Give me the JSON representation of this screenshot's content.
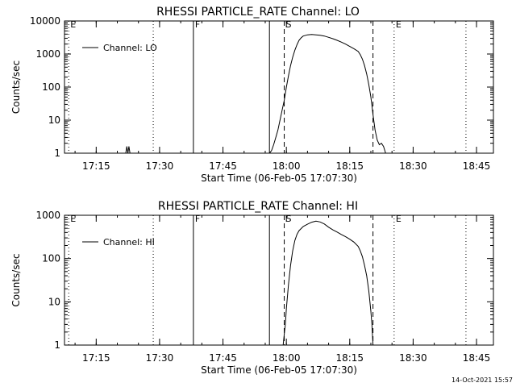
{
  "footer": {
    "timestamp": "14-Oct-2021 15:57"
  },
  "chart_data": [
    {
      "type": "line",
      "title": "RHESSI PARTICLE_RATE Channel: LO",
      "xlabel": "Start Time (06-Feb-05 17:07:30)",
      "ylabel": "Counts/sec",
      "y_scale": "log",
      "ylim": [
        1,
        10000
      ],
      "xlim": [
        "17:07:30",
        "18:49:00"
      ],
      "x_ticks": [
        "17:15",
        "17:30",
        "17:45",
        "18:00",
        "18:15",
        "18:30",
        "18:45"
      ],
      "y_ticks": [
        "1",
        "10",
        "100",
        "1000",
        "10000"
      ],
      "legend": {
        "position": "top-left",
        "entries": [
          "Channel: LO"
        ]
      },
      "markers": [
        {
          "label": "E",
          "time": "17:08:30",
          "style": "dotted"
        },
        {
          "label": "",
          "time": "17:28:30",
          "style": "dotted"
        },
        {
          "label": "F",
          "time": "17:38:00",
          "style": "solid"
        },
        {
          "label": "",
          "time": "17:56:00",
          "style": "solid"
        },
        {
          "label": "S",
          "time": "17:59:30",
          "style": "dashed"
        },
        {
          "label": "",
          "time": "18:20:30",
          "style": "dashed"
        },
        {
          "label": "E",
          "time": "18:25:30",
          "style": "dotted"
        },
        {
          "label": "",
          "time": "18:42:30",
          "style": "dotted"
        }
      ],
      "series": [
        {
          "name": "Channel: LO",
          "segments": [
            [
              [
                "17:22:00",
                1
              ],
              [
                "17:22:15",
                1.6
              ],
              [
                "17:22:30",
                1
              ],
              [
                "17:22:45",
                1.6
              ],
              [
                "17:23:00",
                1
              ]
            ],
            [
              [
                "17:56:00",
                1
              ],
              [
                "17:56:30",
                1.2
              ],
              [
                "17:57:00",
                1.8
              ],
              [
                "17:57:30",
                3
              ],
              [
                "17:58:00",
                5
              ],
              [
                "17:58:30",
                10
              ],
              [
                "17:59:00",
                20
              ],
              [
                "17:59:30",
                40
              ],
              [
                "18:00:00",
                100
              ],
              [
                "18:00:30",
                220
              ],
              [
                "18:01:00",
                450
              ],
              [
                "18:01:30",
                800
              ],
              [
                "18:02:00",
                1300
              ],
              [
                "18:02:30",
                1900
              ],
              [
                "18:03:00",
                2600
              ],
              [
                "18:03:30",
                3100
              ],
              [
                "18:04:00",
                3500
              ],
              [
                "18:05:00",
                3800
              ],
              [
                "18:06:00",
                3900
              ],
              [
                "18:07:00",
                3800
              ],
              [
                "18:08:00",
                3700
              ],
              [
                "18:09:00",
                3500
              ],
              [
                "18:10:00",
                3200
              ],
              [
                "18:11:00",
                2900
              ],
              [
                "18:12:00",
                2600
              ],
              [
                "18:13:00",
                2300
              ],
              [
                "18:14:00",
                2000
              ],
              [
                "18:15:00",
                1700
              ],
              [
                "18:16:00",
                1450
              ],
              [
                "18:17:00",
                1200
              ],
              [
                "18:17:30",
                950
              ],
              [
                "18:18:00",
                700
              ],
              [
                "18:18:30",
                450
              ],
              [
                "18:19:00",
                250
              ],
              [
                "18:19:30",
                120
              ],
              [
                "18:20:00",
                50
              ],
              [
                "18:20:30",
                15
              ],
              [
                "18:21:00",
                5
              ],
              [
                "18:21:30",
                2.5
              ],
              [
                "18:22:00",
                1.8
              ],
              [
                "18:22:30",
                2
              ],
              [
                "18:23:00",
                1.6
              ],
              [
                "18:23:30",
                1
              ]
            ]
          ]
        }
      ]
    },
    {
      "type": "line",
      "title": "RHESSI PARTICLE_RATE Channel: HI",
      "xlabel": "Start Time (06-Feb-05 17:07:30)",
      "ylabel": "Counts/sec",
      "y_scale": "log",
      "ylim": [
        1,
        1000
      ],
      "xlim": [
        "17:07:30",
        "18:49:00"
      ],
      "x_ticks": [
        "17:15",
        "17:30",
        "17:45",
        "18:00",
        "18:15",
        "18:30",
        "18:45"
      ],
      "y_ticks": [
        "1",
        "10",
        "100",
        "1000"
      ],
      "legend": {
        "position": "top-left",
        "entries": [
          "Channel: HI"
        ]
      },
      "markers": [
        {
          "label": "E",
          "time": "17:08:30",
          "style": "dotted"
        },
        {
          "label": "",
          "time": "17:28:30",
          "style": "dotted"
        },
        {
          "label": "F",
          "time": "17:38:00",
          "style": "solid"
        },
        {
          "label": "",
          "time": "17:56:00",
          "style": "solid"
        },
        {
          "label": "S",
          "time": "17:59:30",
          "style": "dashed"
        },
        {
          "label": "",
          "time": "18:20:30",
          "style": "dashed"
        },
        {
          "label": "E",
          "time": "18:25:30",
          "style": "dotted"
        },
        {
          "label": "",
          "time": "18:42:30",
          "style": "dotted"
        }
      ],
      "series": [
        {
          "name": "Channel: HI",
          "segments": [
            [
              [
                "17:59:15",
                1
              ],
              [
                "17:59:30",
                1.8
              ],
              [
                "17:59:45",
                3
              ],
              [
                "18:00:00",
                7
              ],
              [
                "18:00:30",
                25
              ],
              [
                "18:01:00",
                70
              ],
              [
                "18:01:30",
                150
              ],
              [
                "18:02:00",
                260
              ],
              [
                "18:02:30",
                360
              ],
              [
                "18:03:00",
                440
              ],
              [
                "18:04:00",
                550
              ],
              [
                "18:05:00",
                620
              ],
              [
                "18:06:00",
                690
              ],
              [
                "18:07:00",
                730
              ],
              [
                "18:08:00",
                700
              ],
              [
                "18:09:00",
                630
              ],
              [
                "18:10:00",
                530
              ],
              [
                "18:11:00",
                460
              ],
              [
                "18:12:00",
                410
              ],
              [
                "18:13:00",
                360
              ],
              [
                "18:14:00",
                320
              ],
              [
                "18:15:00",
                280
              ],
              [
                "18:16:00",
                240
              ],
              [
                "18:17:00",
                190
              ],
              [
                "18:17:30",
                150
              ],
              [
                "18:18:00",
                110
              ],
              [
                "18:18:30",
                70
              ],
              [
                "18:19:00",
                40
              ],
              [
                "18:19:30",
                18
              ],
              [
                "18:20:00",
                6
              ],
              [
                "18:20:15",
                3
              ],
              [
                "18:20:30",
                1
              ]
            ]
          ]
        }
      ]
    }
  ]
}
